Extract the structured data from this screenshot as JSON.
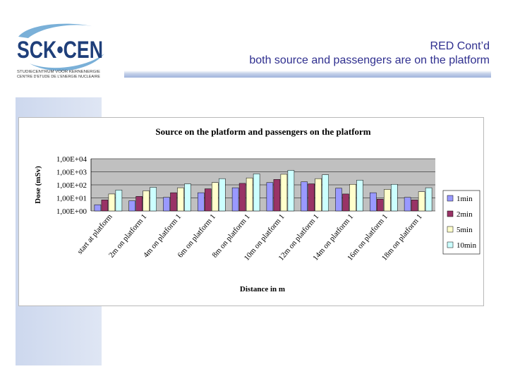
{
  "header": {
    "logo_text": "SCK•CEN",
    "logo_sub1": "STUDIECENTRUM VOOR KERNENERGIE",
    "logo_sub2": "CENTRE D'ETUDE DE L'ENERGIE NUCLEAIRE",
    "title_line1": "RED Cont’d",
    "title_line2": "both source and passengers are on the platform"
  },
  "colors": {
    "title": "#2f2f8f",
    "plot_bg": "#c0c0c0",
    "series": [
      "#9999ff",
      "#993366",
      "#ffffcc",
      "#ccffff"
    ]
  },
  "chart_data": {
    "type": "bar",
    "title": "Source on the platform and passengers on the platform",
    "xlabel": "Distance in m",
    "ylabel": "Dose (mSv)",
    "y_scale": "log",
    "ylim": [
      1,
      10000
    ],
    "y_ticks": [
      "1,00E+00",
      "1,00E+01",
      "1,00E+02",
      "1,00E+03",
      "1,00E+04"
    ],
    "grid": true,
    "legend_position": "right",
    "categories": [
      "start at platform",
      "2m on platform 1",
      "4m on platform 1",
      "6m on platform 1",
      "8m on platform 1",
      "10m on platform 1",
      "12m on platform 1",
      "14m on platform 1",
      "16m on platform 1",
      "18m on platform 1"
    ],
    "series": [
      {
        "name": "1min",
        "values": [
          3,
          6,
          11,
          25,
          60,
          150,
          170,
          55,
          25,
          11
        ]
      },
      {
        "name": "2min",
        "values": [
          7,
          13,
          25,
          50,
          130,
          260,
          120,
          20,
          8,
          7
        ]
      },
      {
        "name": "5min",
        "values": [
          20,
          35,
          60,
          150,
          340,
          650,
          300,
          110,
          45,
          30
        ]
      },
      {
        "name": "10min",
        "values": [
          40,
          65,
          120,
          300,
          700,
          1300,
          600,
          230,
          110,
          60
        ]
      }
    ]
  }
}
